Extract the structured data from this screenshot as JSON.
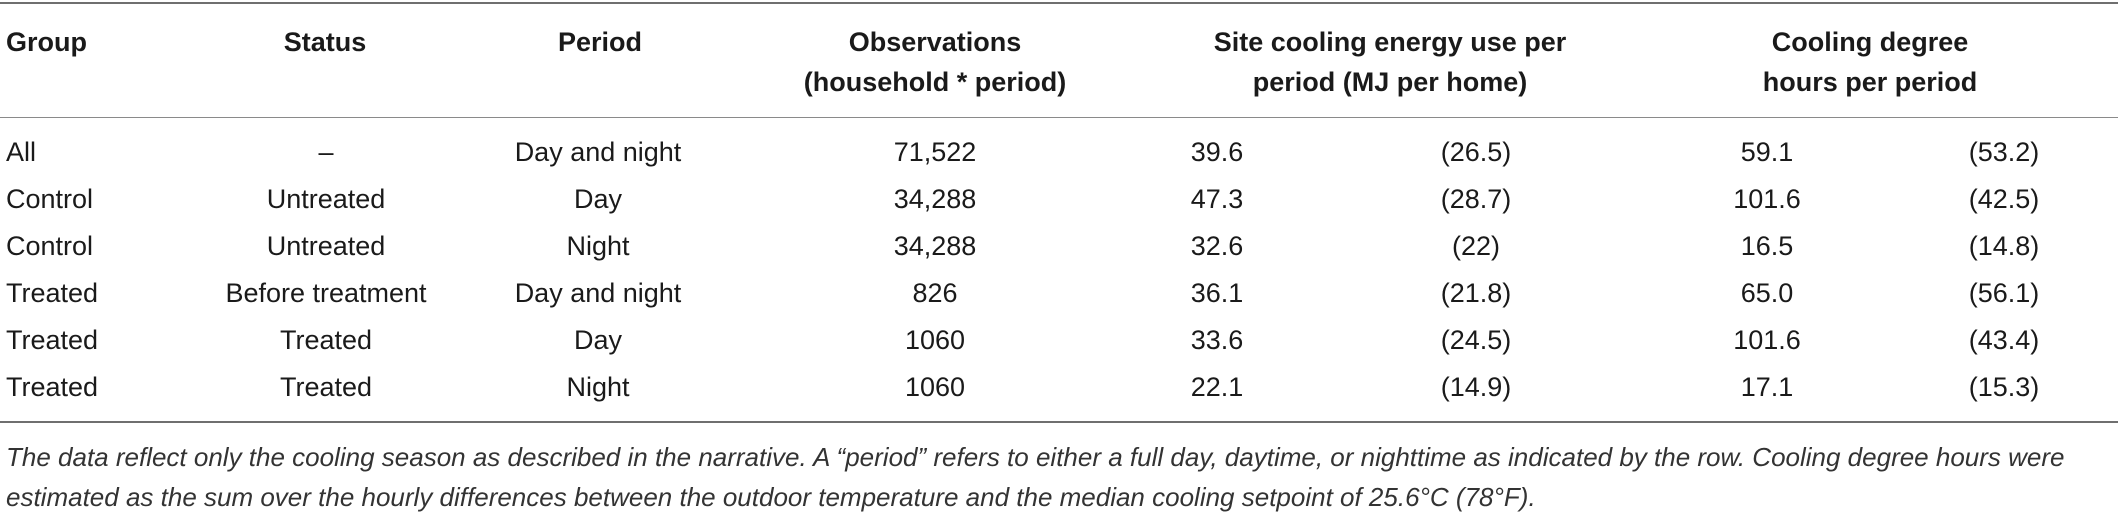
{
  "table": {
    "headers": [
      "Group",
      "Status",
      "Period",
      "Observations",
      "Site cooling energy use per",
      "Cooling degree"
    ],
    "headers_line2": [
      "",
      "",
      "",
      "(household * period)",
      "period (MJ per home)",
      "hours per period"
    ],
    "rows": [
      [
        "All",
        "–",
        "Day and night",
        "71,522",
        "39.6",
        "(26.5)",
        "59.1",
        "(53.2)"
      ],
      [
        "Control",
        "Untreated",
        "Day",
        "34,288",
        "47.3",
        "(28.7)",
        "101.6",
        "(42.5)"
      ],
      [
        "Control",
        "Untreated",
        "Night",
        "34,288",
        "32.6",
        "(22)",
        "16.5",
        "(14.8)"
      ],
      [
        "Treated",
        "Before treatment",
        "Day and night",
        "826",
        "36.1",
        "(21.8)",
        "65.0",
        "(56.1)"
      ],
      [
        "Treated",
        "Treated",
        "Day",
        "1060",
        "33.6",
        "(24.5)",
        "101.6",
        "(43.4)"
      ],
      [
        "Treated",
        "Treated",
        "Night",
        "1060",
        "22.1",
        "(14.9)",
        "17.1",
        "(15.3)"
      ]
    ],
    "footnote": "The data reflect only the cooling season as described in the narrative. A “period” refers to either a full day, daytime, or nighttime as indicated by the row. Cooling degree hours were estimated as the sum over the hourly differences between the outdoor temperature and the median cooling setpoint of 25.6°C (78°F)."
  }
}
